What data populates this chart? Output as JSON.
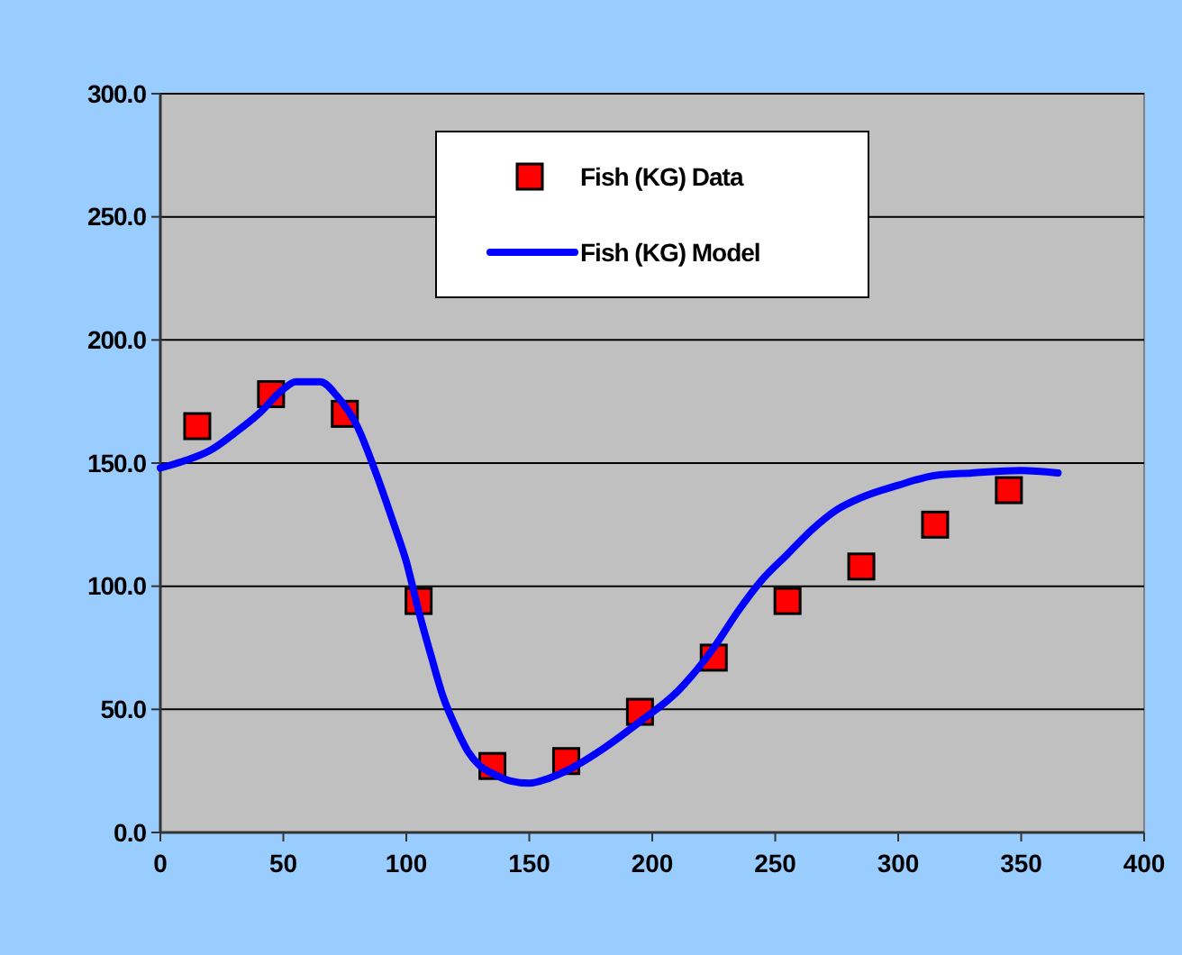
{
  "chart_data": {
    "type": "scatter",
    "xlim": [
      0,
      400
    ],
    "xticks": [
      0,
      50,
      100,
      150,
      200,
      250,
      300,
      350,
      400
    ],
    "ylim": [
      0,
      300
    ],
    "yticks": [
      {
        "value": 0,
        "label": "0.0"
      },
      {
        "value": 50,
        "label": "50.0"
      },
      {
        "value": 100,
        "label": "100.0"
      },
      {
        "value": 150,
        "label": "150.0"
      },
      {
        "value": 200,
        "label": "200.0"
      },
      {
        "value": 250,
        "label": "250.0"
      },
      {
        "value": 300,
        "label": "300.0"
      }
    ],
    "grid": "y",
    "legend": "top",
    "series": [
      {
        "name": "Fish (KG) Data",
        "marker": "square",
        "color": "#ff0000",
        "x": [
          15,
          45,
          75,
          105,
          135,
          165,
          195,
          225,
          255,
          285,
          315,
          345
        ],
        "values": [
          165,
          178,
          170,
          94,
          27,
          29,
          49,
          71,
          94,
          108,
          125,
          139
        ]
      },
      {
        "name": "Fish (KG) Model",
        "type": "line",
        "marker": "none",
        "color": "#0000ff",
        "x": [
          0,
          10,
          20,
          30,
          40,
          50,
          55,
          65,
          72,
          80,
          88,
          95,
          100,
          105,
          110,
          115,
          120,
          125,
          130,
          135,
          142,
          150,
          158,
          165,
          180,
          195,
          210,
          225,
          235,
          245,
          255,
          265,
          275,
          285,
          300,
          315,
          330,
          350,
          365
        ],
        "values": [
          148,
          151,
          155,
          162,
          170,
          180,
          183,
          183,
          177,
          165,
          145,
          125,
          110,
          90,
          72,
          55,
          43,
          33,
          27,
          24,
          21,
          20,
          22,
          25,
          34,
          45,
          57,
          75,
          90,
          103,
          113,
          123,
          131,
          136,
          141,
          145,
          146,
          147,
          146
        ]
      }
    ]
  }
}
